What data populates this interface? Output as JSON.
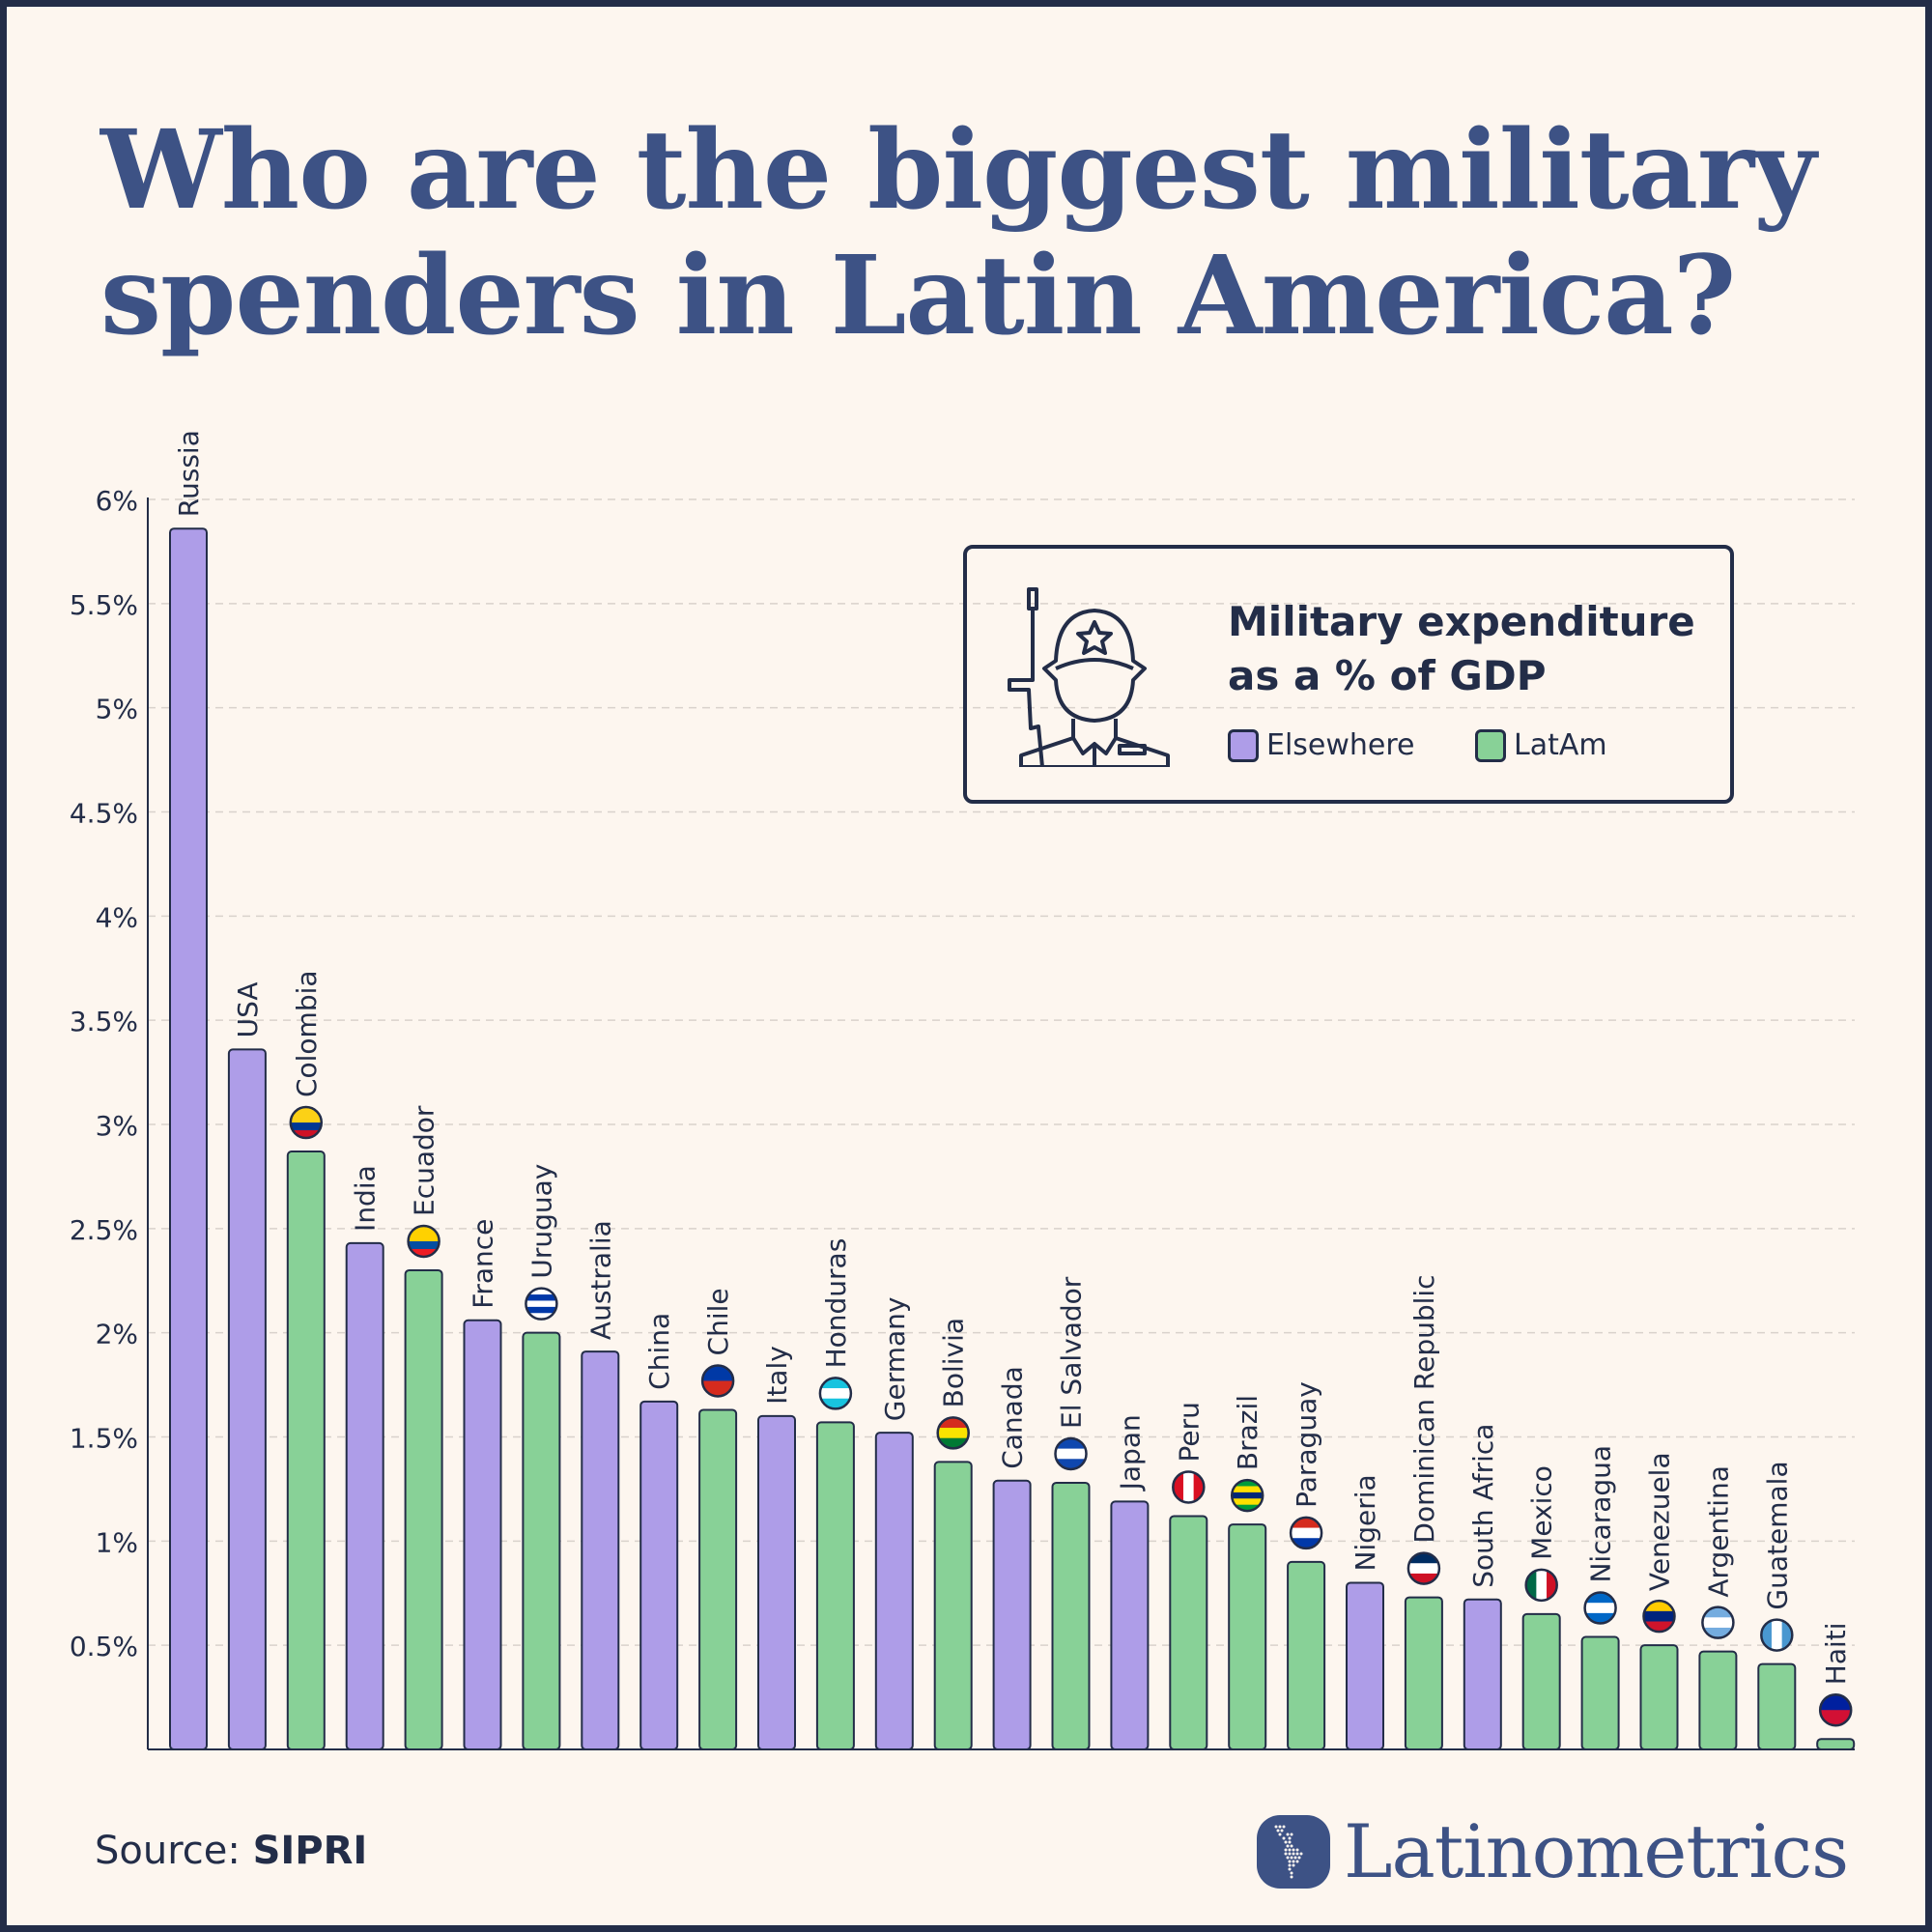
{
  "title_lines": [
    "Who are the biggest military",
    "spenders in Latin America?"
  ],
  "legend": {
    "title_lines": [
      "Military expenditure",
      "as a % of GDP"
    ],
    "items": [
      {
        "label": "Elsewhere",
        "color": "#ae9de8"
      },
      {
        "label": "LatAm",
        "color": "#88d197"
      }
    ],
    "icon": "soldier-icon"
  },
  "source": {
    "label": "Source:",
    "value": "SIPRI"
  },
  "brand": {
    "name": "Latinometrics",
    "icon": "latin-america-map-icon"
  },
  "colors": {
    "elsewhere": "#ae9de8",
    "latam": "#88d197",
    "outline": "#232d48",
    "background": "#fdf6ef",
    "title": "#3d5285"
  },
  "chart_data": {
    "type": "bar",
    "title": "Military expenditure as a % of GDP",
    "ylim": [
      0,
      6
    ],
    "yticks": [
      "0.5%",
      "1%",
      "1.5%",
      "2%",
      "2.5%",
      "3%",
      "3.5%",
      "4%",
      "4.5%",
      "5%",
      "5.5%",
      "6%"
    ],
    "ytick_values": [
      0.5,
      1,
      1.5,
      2,
      2.5,
      3,
      3.5,
      4,
      4.5,
      5,
      5.5,
      6
    ],
    "grid": true,
    "legend_position": "top-right",
    "categories": [
      "Russia",
      "USA",
      "Colombia",
      "India",
      "Ecuador",
      "France",
      "Uruguay",
      "Australia",
      "China",
      "Chile",
      "Italy",
      "Honduras",
      "Germany",
      "Bolivia",
      "Canada",
      "El Salvador",
      "Japan",
      "Peru",
      "Brazil",
      "Paraguay",
      "Nigeria",
      "Dominican Republic",
      "South Africa",
      "Mexico",
      "Nicaragua",
      "Venezuela",
      "Argentina",
      "Guatemala",
      "Haiti"
    ],
    "values": [
      5.86,
      3.36,
      2.87,
      2.43,
      2.3,
      2.06,
      2.0,
      1.91,
      1.67,
      1.63,
      1.6,
      1.57,
      1.52,
      1.38,
      1.29,
      1.28,
      1.19,
      1.12,
      1.08,
      0.9,
      0.8,
      0.73,
      0.72,
      0.65,
      0.54,
      0.5,
      0.47,
      0.41,
      0.05
    ],
    "group": [
      "Elsewhere",
      "Elsewhere",
      "LatAm",
      "Elsewhere",
      "LatAm",
      "Elsewhere",
      "LatAm",
      "Elsewhere",
      "Elsewhere",
      "LatAm",
      "Elsewhere",
      "LatAm",
      "Elsewhere",
      "LatAm",
      "Elsewhere",
      "LatAm",
      "Elsewhere",
      "LatAm",
      "LatAm",
      "LatAm",
      "Elsewhere",
      "LatAm",
      "Elsewhere",
      "LatAm",
      "LatAm",
      "LatAm",
      "LatAm",
      "LatAm",
      "LatAm"
    ],
    "flags": {
      "Colombia": {
        "dir": "h",
        "stripes": [
          "#fcd116",
          "#fcd116",
          "#003893",
          "#ce1126"
        ]
      },
      "Ecuador": {
        "dir": "h",
        "stripes": [
          "#ffd100",
          "#ffd100",
          "#034ea2",
          "#ed1c24"
        ]
      },
      "Uruguay": {
        "dir": "h",
        "stripes": [
          "#ffffff",
          "#0038a8",
          "#ffffff",
          "#0038a8",
          "#ffffff"
        ]
      },
      "Chile": {
        "dir": "h",
        "stripes": [
          "#0039a6",
          "#d52b1e"
        ]
      },
      "Honduras": {
        "dir": "h",
        "stripes": [
          "#18c3df",
          "#ffffff",
          "#18c3df"
        ]
      },
      "Bolivia": {
        "dir": "h",
        "stripes": [
          "#d52b1e",
          "#f9e300",
          "#007934"
        ]
      },
      "El Salvador": {
        "dir": "h",
        "stripes": [
          "#0f47af",
          "#ffffff",
          "#0f47af"
        ]
      },
      "Peru": {
        "dir": "v",
        "stripes": [
          "#d91023",
          "#ffffff",
          "#d91023"
        ]
      },
      "Brazil": {
        "dir": "h",
        "stripes": [
          "#009c3b",
          "#ffdf00",
          "#002776",
          "#ffdf00",
          "#009c3b"
        ]
      },
      "Paraguay": {
        "dir": "h",
        "stripes": [
          "#d52b1e",
          "#ffffff",
          "#0038a8"
        ]
      },
      "Dominican Republic": {
        "dir": "h",
        "stripes": [
          "#002d62",
          "#ffffff",
          "#ce1126"
        ]
      },
      "Mexico": {
        "dir": "v",
        "stripes": [
          "#006847",
          "#ffffff",
          "#ce1126"
        ]
      },
      "Nicaragua": {
        "dir": "h",
        "stripes": [
          "#0067c6",
          "#ffffff",
          "#0067c6"
        ]
      },
      "Venezuela": {
        "dir": "h",
        "stripes": [
          "#ffcc00",
          "#00247d",
          "#cf142b"
        ]
      },
      "Argentina": {
        "dir": "h",
        "stripes": [
          "#74acdf",
          "#ffffff",
          "#74acdf"
        ]
      },
      "Guatemala": {
        "dir": "v",
        "stripes": [
          "#4997d0",
          "#ffffff",
          "#4997d0"
        ]
      },
      "Haiti": {
        "dir": "h",
        "stripes": [
          "#00209f",
          "#d21034"
        ]
      }
    }
  }
}
